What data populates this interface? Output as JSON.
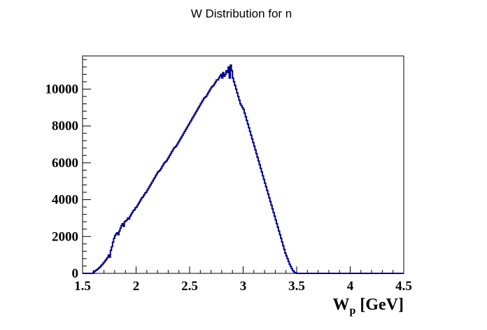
{
  "chart_data": {
    "type": "histogram",
    "title": "W Distribution for n",
    "xlabel_main": "W",
    "xlabel_sub": "p",
    "xlabel_unit": " [GeV]",
    "ylabel": "",
    "xlim": [
      1.5,
      4.5
    ],
    "ylim": [
      0,
      11800
    ],
    "grid": false,
    "legend": "none",
    "line_color": "#00008b",
    "x_ticks": [
      {
        "value": 1.5,
        "label": "1.5"
      },
      {
        "value": 2.0,
        "label": "2"
      },
      {
        "value": 2.5,
        "label": "2.5"
      },
      {
        "value": 3.0,
        "label": "3"
      },
      {
        "value": 3.5,
        "label": "3.5"
      },
      {
        "value": 4.0,
        "label": "4"
      },
      {
        "value": 4.5,
        "label": "4.5"
      }
    ],
    "y_ticks": [
      {
        "value": 0,
        "label": "0"
      },
      {
        "value": 2000,
        "label": "2000"
      },
      {
        "value": 4000,
        "label": "4000"
      },
      {
        "value": 6000,
        "label": "6000"
      },
      {
        "value": 8000,
        "label": "8000"
      },
      {
        "value": 10000,
        "label": "10000"
      }
    ],
    "bin_start": 1.5,
    "bin_width": 0.01,
    "counts": [
      0,
      0,
      0,
      0,
      0,
      0,
      0,
      0,
      0,
      0,
      60,
      110,
      160,
      200,
      240,
      300,
      350,
      420,
      480,
      550,
      620,
      700,
      780,
      860,
      1000,
      880,
      1250,
      1450,
      1700,
      1900,
      2050,
      2150,
      2200,
      2100,
      2300,
      2450,
      2600,
      2700,
      2550,
      2800,
      2850,
      2900,
      3000,
      2950,
      3100,
      3200,
      3300,
      3400,
      3450,
      3550,
      3600,
      3700,
      3800,
      3900,
      4000,
      4100,
      4150,
      4250,
      4350,
      4400,
      4500,
      4600,
      4700,
      4800,
      4900,
      5000,
      5100,
      5200,
      5300,
      5400,
      5500,
      5550,
      5600,
      5700,
      5800,
      5900,
      6000,
      6050,
      6100,
      6200,
      6300,
      6400,
      6500,
      6600,
      6700,
      6800,
      6850,
      6900,
      7000,
      7100,
      7200,
      7300,
      7400,
      7500,
      7600,
      7700,
      7800,
      7900,
      8000,
      8100,
      8200,
      8300,
      8400,
      8500,
      8600,
      8700,
      8800,
      8900,
      9000,
      9100,
      9200,
      9300,
      9400,
      9500,
      9550,
      9600,
      9700,
      9800,
      9900,
      10000,
      10100,
      10150,
      10200,
      10300,
      10400,
      10500,
      10500,
      10600,
      10700,
      10800,
      10600,
      10900,
      10700,
      10800,
      11000,
      10900,
      11200,
      10600,
      11300,
      11000,
      10600,
      10400,
      10200,
      10000,
      9800,
      9600,
      9400,
      9200,
      9100,
      9000,
      8900,
      8700,
      8500,
      8300,
      8100,
      7900,
      7700,
      7500,
      7300,
      7100,
      6900,
      6700,
      6500,
      6300,
      6100,
      5900,
      5700,
      5500,
      5300,
      5100,
      4900,
      4700,
      4500,
      4300,
      4100,
      3900,
      3700,
      3500,
      3300,
      3100,
      2900,
      2700,
      2500,
      2300,
      2100,
      1900,
      1700,
      1500,
      1300,
      1100,
      950,
      800,
      650,
      500,
      380,
      260,
      160,
      90,
      40,
      15,
      0,
      0,
      0,
      0,
      0,
      0,
      0,
      0,
      0,
      0,
      0,
      0,
      0,
      0,
      0,
      0,
      0,
      0,
      0,
      0,
      0,
      0,
      0,
      0,
      0,
      0,
      0,
      0,
      0,
      0,
      0,
      0,
      0,
      0,
      0,
      0,
      0,
      0,
      0,
      0,
      0,
      0,
      0,
      0,
      0,
      0,
      0,
      0,
      0,
      0,
      0,
      0,
      0,
      0,
      0,
      0,
      0,
      0,
      0,
      0,
      0,
      0,
      0,
      0,
      0,
      0,
      0,
      0,
      0,
      0,
      0,
      0,
      0,
      0,
      0,
      0,
      0,
      0,
      0,
      0,
      0,
      0,
      0,
      0,
      0,
      0,
      0,
      0,
      0,
      0,
      0,
      0,
      0,
      0,
      0,
      0,
      0,
      0,
      0,
      0
    ]
  }
}
